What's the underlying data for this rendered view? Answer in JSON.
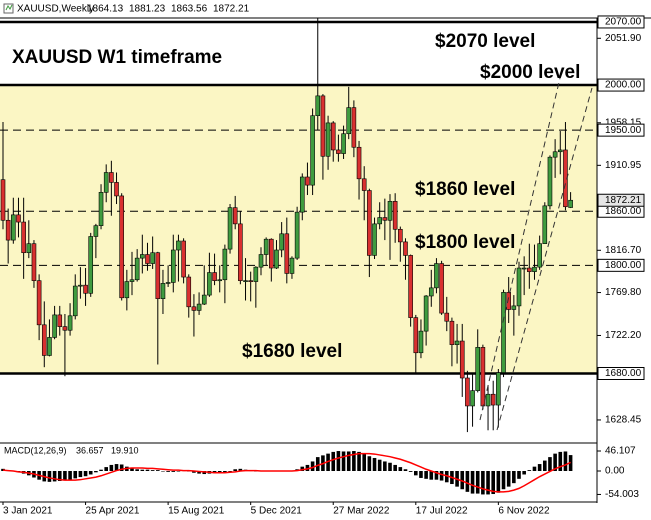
{
  "chart_data": [
    {
      "type": "candlestick",
      "symbol": "XAUUSD,Weekly",
      "title": "XAUUSD W1 timeframe",
      "annotations": [
        "$2070 level",
        "$2000 level",
        "$1860 level",
        "$1800 level",
        "$1680 level"
      ],
      "categories": [
        "3 Jan 2021",
        null,
        null,
        null,
        null,
        null,
        null,
        null,
        null,
        null,
        null,
        null,
        null,
        null,
        null,
        null,
        "25 Apr 2021",
        null,
        null,
        null,
        null,
        null,
        null,
        null,
        null,
        null,
        null,
        null,
        null,
        null,
        null,
        null,
        "15 Aug 2021",
        null,
        null,
        null,
        null,
        null,
        null,
        null,
        null,
        null,
        null,
        null,
        null,
        null,
        null,
        null,
        "5 Dec 2021",
        null,
        null,
        null,
        null,
        null,
        null,
        null,
        null,
        null,
        null,
        null,
        null,
        null,
        null,
        null,
        "27 Mar 2022",
        null,
        null,
        null,
        null,
        null,
        null,
        null,
        null,
        null,
        null,
        null,
        null,
        null,
        null,
        null,
        "17 Jul 2022",
        null,
        null,
        null,
        null,
        null,
        null,
        null,
        null,
        null,
        null,
        null,
        null,
        null,
        null,
        null,
        "6 Nov 2022",
        null,
        null,
        null,
        null,
        null,
        null,
        null,
        null,
        null,
        null,
        null,
        null,
        null,
        null
      ],
      "ohlc": [
        [
          1895,
          1959,
          1840,
          1850
        ],
        [
          1850,
          1863,
          1802,
          1828
        ],
        [
          1828,
          1875,
          1824,
          1856
        ],
        [
          1856,
          1875,
          1831,
          1848
        ],
        [
          1848,
          1875,
          1785,
          1814
        ],
        [
          1814,
          1850,
          1808,
          1824
        ],
        [
          1824,
          1828,
          1775,
          1783
        ],
        [
          1783,
          1790,
          1717,
          1734
        ],
        [
          1734,
          1760,
          1687,
          1700
        ],
        [
          1700,
          1740,
          1699,
          1720
        ],
        [
          1720,
          1755,
          1718,
          1745
        ],
        [
          1745,
          1755,
          1722,
          1732
        ],
        [
          1732,
          1746,
          1677,
          1728
        ],
        [
          1728,
          1758,
          1722,
          1744
        ],
        [
          1744,
          1790,
          1740,
          1777
        ],
        [
          1777,
          1798,
          1763,
          1778
        ],
        [
          1778,
          1797,
          1755,
          1769
        ],
        [
          1769,
          1836,
          1765,
          1832
        ],
        [
          1832,
          1846,
          1808,
          1844
        ],
        [
          1844,
          1890,
          1840,
          1881
        ],
        [
          1881,
          1912,
          1870,
          1903
        ],
        [
          1903,
          1916,
          1855,
          1892
        ],
        [
          1892,
          1903,
          1868,
          1877
        ],
        [
          1877,
          1880,
          1761,
          1764
        ],
        [
          1764,
          1795,
          1750,
          1782
        ],
        [
          1782,
          1815,
          1767,
          1784
        ],
        [
          1784,
          1818,
          1782,
          1808
        ],
        [
          1808,
          1834,
          1791,
          1812
        ],
        [
          1812,
          1825,
          1794,
          1802
        ],
        [
          1802,
          1832,
          1796,
          1814
        ],
        [
          1814,
          1815,
          1690,
          1763
        ],
        [
          1763,
          1795,
          1746,
          1780
        ],
        [
          1780,
          1800,
          1776,
          1781
        ],
        [
          1781,
          1834,
          1770,
          1817
        ],
        [
          1817,
          1834,
          1782,
          1827
        ],
        [
          1827,
          1830,
          1780,
          1787
        ],
        [
          1787,
          1790,
          1742,
          1754
        ],
        [
          1754,
          1768,
          1721,
          1750
        ],
        [
          1750,
          1770,
          1745,
          1757
        ],
        [
          1757,
          1800,
          1756,
          1767
        ],
        [
          1767,
          1814,
          1765,
          1792
        ],
        [
          1792,
          1813,
          1778,
          1783
        ],
        [
          1783,
          1800,
          1770,
          1784
        ],
        [
          1784,
          1823,
          1758,
          1818
        ],
        [
          1818,
          1868,
          1813,
          1864
        ],
        [
          1864,
          1877,
          1840,
          1846
        ],
        [
          1846,
          1860,
          1779,
          1783
        ],
        [
          1783,
          1808,
          1761,
          1783
        ],
        [
          1783,
          1793,
          1760,
          1782
        ],
        [
          1782,
          1799,
          1753,
          1798
        ],
        [
          1798,
          1820,
          1789,
          1812
        ],
        [
          1812,
          1831,
          1800,
          1829
        ],
        [
          1829,
          1830,
          1782,
          1797
        ],
        [
          1797,
          1828,
          1796,
          1817
        ],
        [
          1817,
          1848,
          1809,
          1835
        ],
        [
          1835,
          1853,
          1780,
          1791
        ],
        [
          1791,
          1810,
          1785,
          1808
        ],
        [
          1808,
          1865,
          1806,
          1859
        ],
        [
          1859,
          1902,
          1850,
          1898
        ],
        [
          1898,
          1914,
          1878,
          1889
        ],
        [
          1889,
          1974,
          1878,
          1966
        ],
        [
          1966,
          2070,
          1950,
          1988
        ],
        [
          1988,
          1990,
          1895,
          1921
        ],
        [
          1921,
          1966,
          1906,
          1958
        ],
        [
          1958,
          1960,
          1915,
          1928
        ],
        [
          1928,
          1945,
          1915,
          1924
        ],
        [
          1924,
          1955,
          1918,
          1946
        ],
        [
          1946,
          1998,
          1940,
          1975
        ],
        [
          1975,
          1983,
          1920,
          1931
        ],
        [
          1931,
          1938,
          1873,
          1896
        ],
        [
          1896,
          1910,
          1850,
          1883
        ],
        [
          1883,
          1885,
          1787,
          1811
        ],
        [
          1811,
          1853,
          1807,
          1846
        ],
        [
          1846,
          1870,
          1840,
          1853
        ],
        [
          1853,
          1874,
          1828,
          1850
        ],
        [
          1850,
          1879,
          1806,
          1871
        ],
        [
          1871,
          1880,
          1825,
          1840
        ],
        [
          1840,
          1843,
          1804,
          1826
        ],
        [
          1826,
          1830,
          1784,
          1811
        ],
        [
          1811,
          1812,
          1732,
          1742
        ],
        [
          1742,
          1745,
          1681,
          1703
        ],
        [
          1703,
          1740,
          1697,
          1727
        ],
        [
          1727,
          1767,
          1711,
          1766
        ],
        [
          1766,
          1795,
          1754,
          1775
        ],
        [
          1775,
          1808,
          1769,
          1802
        ],
        [
          1802,
          1805,
          1745,
          1747
        ],
        [
          1747,
          1765,
          1727,
          1738
        ],
        [
          1738,
          1742,
          1688,
          1712
        ],
        [
          1712,
          1735,
          1691,
          1716
        ],
        [
          1716,
          1735,
          1654,
          1675
        ],
        [
          1675,
          1683,
          1615,
          1644
        ],
        [
          1644,
          1680,
          1621,
          1661
        ],
        [
          1661,
          1729,
          1659,
          1709
        ],
        [
          1709,
          1712,
          1640,
          1644
        ],
        [
          1644,
          1667,
          1617,
          1657
        ],
        [
          1657,
          1672,
          1617,
          1645
        ],
        [
          1645,
          1685,
          1620,
          1681
        ],
        [
          1681,
          1773,
          1676,
          1770
        ],
        [
          1770,
          1787,
          1736,
          1751
        ],
        [
          1751,
          1767,
          1722,
          1755
        ],
        [
          1755,
          1804,
          1744,
          1797
        ],
        [
          1797,
          1810,
          1767,
          1797
        ],
        [
          1797,
          1824,
          1774,
          1793
        ],
        [
          1793,
          1823,
          1784,
          1798
        ],
        [
          1798,
          1833,
          1795,
          1824
        ],
        [
          1824,
          1870,
          1824,
          1866
        ],
        [
          1866,
          1922,
          1862,
          1920
        ],
        [
          1920,
          1940,
          1897,
          1926
        ],
        [
          1926,
          1949,
          1901,
          1928
        ],
        [
          1928,
          1959,
          1861,
          1865
        ],
        [
          1864.13,
          1881.23,
          1863.56,
          1872.21
        ]
      ],
      "up_color": "#3f9b3f",
      "down_color": "#d93030",
      "zone": {
        "from": 1680,
        "to": 2000,
        "color": "#fbf6c4"
      },
      "ylim": [
        1604,
        2074.4
      ],
      "yticks": [
        {
          "value": 2051.9,
          "label": "2051.90"
        },
        1958.15,
        1910.95,
        {
          "value": 1816.7,
          "label": "1816.70"
        },
        {
          "value": 1769.8,
          "label": "1769.80"
        },
        {
          "value": 1722.2,
          "label": "1722.20"
        },
        1628.45
      ],
      "levels": [
        {
          "value": 2070,
          "label": "2070.00",
          "style": "solid"
        },
        {
          "value": 2000,
          "label": "2000.00",
          "style": "solid"
        },
        {
          "value": 1950,
          "label": "1950.00",
          "style": "dashed"
        },
        {
          "value": 1860,
          "label": "1860.00",
          "style": "dashed"
        },
        {
          "value": 1800,
          "label": "1800.00",
          "style": "dashed"
        },
        {
          "value": 1680,
          "label": "1680.00",
          "style": "solid"
        }
      ]
    },
    {
      "type": "macd",
      "label": "MACD(12,26,9)",
      "readout": [
        36.657,
        {
          "value": 19.91,
          "label": "19.910"
        }
      ],
      "ylim": [
        -66.8,
        59.9
      ],
      "yticks": [
        46.107,
        {
          "value": 0,
          "label": "0.00"
        },
        -54.003
      ],
      "main": {
        "color": "#000000",
        "values": [
          5,
          2,
          0,
          -3,
          -6,
          -10,
          -15,
          -20,
          -24,
          -25,
          -24,
          -23,
          -22,
          -20,
          -17,
          -14,
          -12,
          -8,
          -3,
          3,
          9,
          14,
          16,
          15,
          10,
          6,
          4,
          3,
          3,
          2,
          2,
          -1,
          -2,
          -2,
          0,
          1,
          -1,
          -4,
          -6,
          -7,
          -6,
          -5,
          -4,
          -3,
          0,
          4,
          5,
          3,
          1,
          -1,
          -1,
          0,
          -1,
          0,
          1,
          -1,
          0,
          4,
          10,
          14,
          22,
          32,
          36,
          40,
          44,
          46,
          45,
          45,
          46,
          44,
          40,
          34,
          30,
          26,
          22,
          19,
          14,
          9,
          4,
          -2,
          -10,
          -16,
          -18,
          -20,
          -20,
          -22,
          -26,
          -30,
          -36,
          -42,
          -48,
          -52,
          -52,
          -54,
          -54,
          -53,
          -50,
          -42,
          -36,
          -28,
          -18,
          -8,
          2,
          10,
          16,
          24,
          32,
          40,
          44,
          45,
          36.657
        ]
      },
      "signal": {
        "color": "#ff0000",
        "values": [
          2,
          1,
          0,
          -2,
          -3,
          -5,
          -7,
          -10,
          -13,
          -16,
          -18,
          -20,
          -21,
          -21,
          -21,
          -20,
          -18,
          -16,
          -14,
          -11,
          -7,
          -3,
          1,
          4,
          6,
          7,
          7,
          7,
          6,
          6,
          5,
          4,
          3,
          2,
          2,
          1,
          1,
          0,
          -1,
          -2,
          -3,
          -4,
          -4,
          -4,
          -3,
          -2,
          0,
          1,
          1,
          1,
          0,
          0,
          0,
          0,
          0,
          0,
          0,
          1,
          3,
          5,
          8,
          13,
          17,
          22,
          26,
          30,
          33,
          36,
          38,
          40,
          40,
          40,
          39,
          37,
          35,
          33,
          30,
          27,
          23,
          19,
          14,
          9,
          4,
          0,
          -4,
          -8,
          -11,
          -15,
          -19,
          -23,
          -28,
          -33,
          -37,
          -41,
          -44,
          -47,
          -48,
          -48,
          -47,
          -44,
          -40,
          -34,
          -27,
          -20,
          -13,
          -7,
          -1,
          5,
          10,
          14,
          19.91
        ]
      }
    }
  ]
}
